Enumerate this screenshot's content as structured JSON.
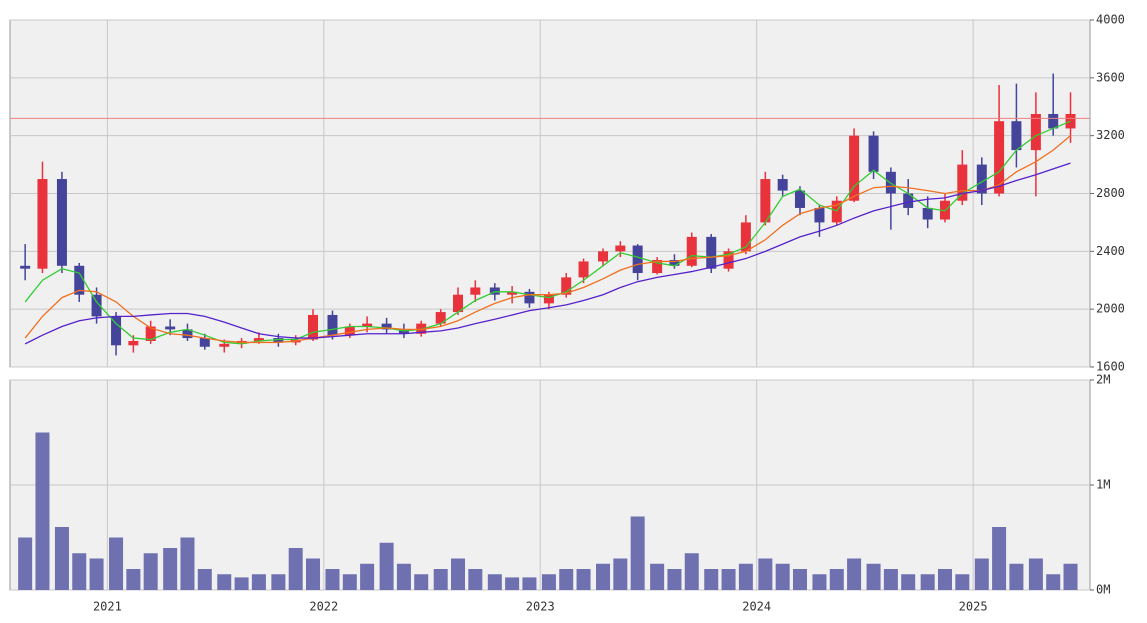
{
  "chart_data": [
    {
      "type": "candlestick",
      "x": [
        2020.62,
        2020.7,
        2020.79,
        2020.87,
        2020.95,
        2021.04,
        2021.12,
        2021.2,
        2021.29,
        2021.37,
        2021.45,
        2021.54,
        2021.62,
        2021.7,
        2021.79,
        2021.87,
        2021.95,
        2022.04,
        2022.12,
        2022.2,
        2022.29,
        2022.37,
        2022.45,
        2022.54,
        2022.62,
        2022.7,
        2022.79,
        2022.87,
        2022.95,
        2023.04,
        2023.12,
        2023.2,
        2023.29,
        2023.37,
        2023.45,
        2023.54,
        2023.62,
        2023.7,
        2023.79,
        2023.87,
        2023.95,
        2024.04,
        2024.12,
        2024.2,
        2024.29,
        2024.37,
        2024.45,
        2024.54,
        2024.62,
        2024.7,
        2024.79,
        2024.87,
        2024.95,
        2025.04,
        2025.12,
        2025.2,
        2025.29,
        2025.37,
        2025.45
      ],
      "open": [
        2300,
        2280,
        2900,
        2300,
        2100,
        1950,
        1750,
        1780,
        1880,
        1860,
        1800,
        1740,
        1760,
        1780,
        1800,
        1770,
        1790,
        1960,
        1820,
        1880,
        1900,
        1860,
        1830,
        1900,
        1980,
        2100,
        2150,
        2100,
        2120,
        2040,
        2100,
        2220,
        2330,
        2400,
        2440,
        2250,
        2340,
        2300,
        2500,
        2280,
        2400,
        2600,
        2900,
        2820,
        2700,
        2600,
        2750,
        3200,
        2950,
        2800,
        2700,
        2620,
        2750,
        3000,
        2800,
        3300,
        3100,
        3350,
        3250
      ],
      "high": [
        2450,
        3020,
        2950,
        2320,
        2150,
        1980,
        1820,
        1920,
        1930,
        1900,
        1830,
        1790,
        1800,
        1840,
        1830,
        1820,
        2000,
        1990,
        1900,
        1950,
        1940,
        1900,
        1920,
        2000,
        2150,
        2200,
        2180,
        2160,
        2140,
        2120,
        2250,
        2350,
        2420,
        2470,
        2450,
        2360,
        2380,
        2530,
        2520,
        2420,
        2650,
        2950,
        2930,
        2850,
        2720,
        2780,
        3250,
        3230,
        2980,
        2900,
        2780,
        2800,
        3100,
        3050,
        3550,
        3560,
        3500,
        3630,
        3500
      ],
      "low": [
        2200,
        2250,
        2250,
        2050,
        1900,
        1680,
        1700,
        1760,
        1820,
        1780,
        1720,
        1700,
        1730,
        1760,
        1740,
        1750,
        1780,
        1790,
        1800,
        1840,
        1830,
        1800,
        1810,
        1880,
        1960,
        2050,
        2060,
        2040,
        2010,
        2000,
        2080,
        2180,
        2300,
        2360,
        2200,
        2240,
        2280,
        2290,
        2250,
        2260,
        2380,
        2580,
        2780,
        2650,
        2500,
        2580,
        2740,
        2900,
        2550,
        2650,
        2560,
        2600,
        2720,
        2720,
        2780,
        2980,
        2780,
        3200,
        3150
      ],
      "close": [
        2280,
        2900,
        2300,
        2100,
        1950,
        1750,
        1780,
        1880,
        1860,
        1800,
        1740,
        1760,
        1780,
        1800,
        1770,
        1790,
        1960,
        1820,
        1880,
        1900,
        1860,
        1830,
        1900,
        1980,
        2100,
        2150,
        2100,
        2120,
        2040,
        2100,
        2220,
        2330,
        2400,
        2440,
        2250,
        2340,
        2300,
        2500,
        2280,
        2400,
        2600,
        2900,
        2820,
        2700,
        2600,
        2750,
        3200,
        2950,
        2800,
        2700,
        2620,
        2750,
        3000,
        2800,
        3300,
        3100,
        3350,
        3250,
        3350
      ],
      "up_color": "#e8323c",
      "down_color": "#44449a",
      "series": [
        {
          "color": "#33cc33",
          "values": [
            2050,
            2200,
            2280,
            2250,
            2050,
            1900,
            1800,
            1790,
            1840,
            1860,
            1820,
            1770,
            1760,
            1780,
            1790,
            1790,
            1840,
            1860,
            1880,
            1880,
            1870,
            1850,
            1860,
            1900,
            1980,
            2060,
            2120,
            2120,
            2100,
            2080,
            2120,
            2200,
            2300,
            2390,
            2360,
            2320,
            2300,
            2370,
            2360,
            2380,
            2430,
            2600,
            2780,
            2830,
            2720,
            2680,
            2850,
            2960,
            2870,
            2800,
            2700,
            2680,
            2800,
            2880,
            2950,
            3100,
            3200,
            3250,
            3300
          ]
        },
        {
          "color": "#f07020",
          "values": [
            1800,
            1950,
            2080,
            2130,
            2120,
            2050,
            1950,
            1870,
            1830,
            1820,
            1800,
            1780,
            1770,
            1770,
            1770,
            1780,
            1800,
            1820,
            1840,
            1860,
            1870,
            1860,
            1860,
            1880,
            1920,
            1980,
            2040,
            2080,
            2100,
            2100,
            2110,
            2150,
            2210,
            2270,
            2310,
            2330,
            2330,
            2350,
            2360,
            2370,
            2400,
            2480,
            2580,
            2660,
            2700,
            2720,
            2780,
            2840,
            2850,
            2840,
            2820,
            2800,
            2820,
            2820,
            2860,
            2950,
            3020,
            3100,
            3200
          ]
        },
        {
          "color": "#5522cc",
          "values": [
            1760,
            1820,
            1880,
            1920,
            1940,
            1950,
            1950,
            1960,
            1970,
            1970,
            1950,
            1910,
            1870,
            1830,
            1810,
            1800,
            1800,
            1810,
            1820,
            1830,
            1830,
            1830,
            1840,
            1850,
            1870,
            1900,
            1930,
            1960,
            1990,
            2010,
            2030,
            2060,
            2100,
            2150,
            2190,
            2220,
            2240,
            2260,
            2290,
            2320,
            2350,
            2400,
            2450,
            2500,
            2540,
            2580,
            2630,
            2680,
            2710,
            2740,
            2760,
            2770,
            2800,
            2820,
            2850,
            2890,
            2930,
            2970,
            3010
          ]
        }
      ],
      "hline": 3320,
      "hline_color": "#f08080",
      "xlim": [
        2020.55,
        2025.54
      ],
      "xticks": [
        2021,
        2022,
        2023,
        2024,
        2025
      ],
      "ylim": [
        1600,
        4000
      ],
      "yticks": [
        1600,
        2000,
        2400,
        2800,
        3200,
        3600,
        4000
      ],
      "grid": true
    },
    {
      "type": "bar",
      "x": [
        2020.62,
        2020.7,
        2020.79,
        2020.87,
        2020.95,
        2021.04,
        2021.12,
        2021.2,
        2021.29,
        2021.37,
        2021.45,
        2021.54,
        2021.62,
        2021.7,
        2021.79,
        2021.87,
        2021.95,
        2022.04,
        2022.12,
        2022.2,
        2022.29,
        2022.37,
        2022.45,
        2022.54,
        2022.62,
        2022.7,
        2022.79,
        2022.87,
        2022.95,
        2023.04,
        2023.12,
        2023.2,
        2023.29,
        2023.37,
        2023.45,
        2023.54,
        2023.62,
        2023.7,
        2023.79,
        2023.87,
        2023.95,
        2024.04,
        2024.12,
        2024.2,
        2024.29,
        2024.37,
        2024.45,
        2024.54,
        2024.62,
        2024.7,
        2024.79,
        2024.87,
        2024.95,
        2025.04,
        2025.12,
        2025.2,
        2025.29,
        2025.37,
        2025.45
      ],
      "values": [
        500000,
        1500000,
        600000,
        350000,
        300000,
        500000,
        200000,
        350000,
        400000,
        500000,
        200000,
        150000,
        120000,
        150000,
        150000,
        400000,
        300000,
        200000,
        150000,
        250000,
        450000,
        250000,
        150000,
        200000,
        300000,
        200000,
        150000,
        120000,
        120000,
        150000,
        200000,
        200000,
        250000,
        300000,
        700000,
        250000,
        200000,
        350000,
        200000,
        200000,
        250000,
        300000,
        250000,
        200000,
        150000,
        200000,
        300000,
        250000,
        200000,
        150000,
        150000,
        200000,
        150000,
        300000,
        600000,
        250000,
        300000,
        150000,
        250000
      ],
      "color": "#6e70b0",
      "xlim": [
        2020.55,
        2025.54
      ],
      "xticks": [
        2021,
        2022,
        2023,
        2024,
        2025
      ],
      "ylim": [
        0,
        2000000
      ],
      "yticks": [
        {
          "value": 0,
          "label": "0M"
        },
        {
          "value": 1000000,
          "label": "1M"
        },
        {
          "value": 2000000,
          "label": "2M"
        }
      ],
      "grid": true
    }
  ]
}
